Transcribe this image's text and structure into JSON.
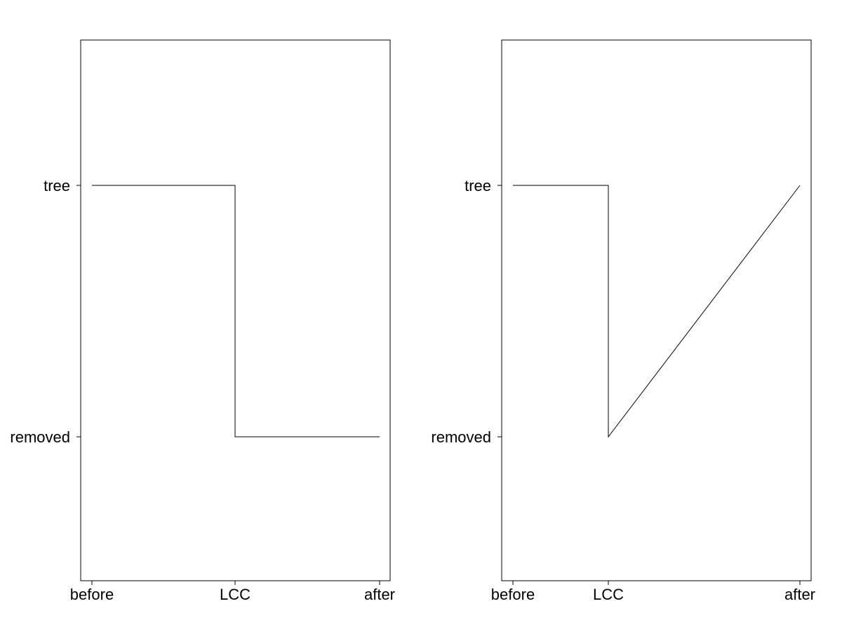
{
  "chart_data": [
    {
      "type": "line",
      "title": "",
      "xlabel": "",
      "ylabel": "",
      "x_categories": [
        "before",
        "LCC",
        "after"
      ],
      "y_categories": [
        "removed",
        "tree"
      ],
      "line_style": "step",
      "points": [
        {
          "x": "before",
          "y": "tree"
        },
        {
          "x": "LCC",
          "y": "tree"
        },
        {
          "x": "LCC",
          "y": "removed"
        },
        {
          "x": "after",
          "y": "removed"
        }
      ],
      "grid": false,
      "legend": "none"
    },
    {
      "type": "line",
      "title": "",
      "xlabel": "",
      "ylabel": "",
      "x_categories": [
        "before",
        "LCC",
        "after"
      ],
      "y_categories": [
        "removed",
        "tree"
      ],
      "line_style": "step-then-linear",
      "points": [
        {
          "x": "before",
          "y": "tree"
        },
        {
          "x": "LCC",
          "y": "tree"
        },
        {
          "x": "LCC",
          "y": "removed"
        },
        {
          "x": "after",
          "y": "tree"
        }
      ],
      "grid": false,
      "legend": "none"
    }
  ]
}
